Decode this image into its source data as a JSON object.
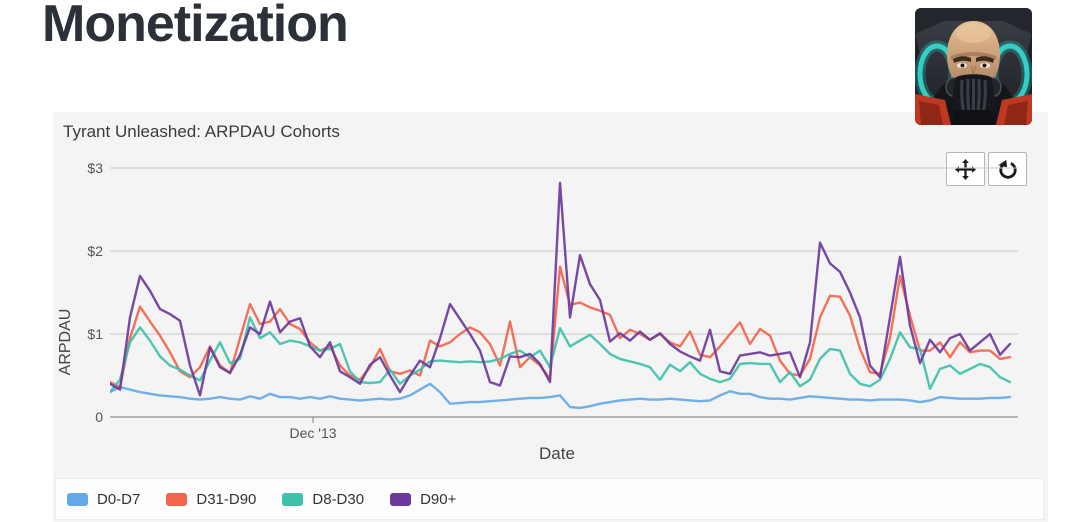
{
  "header": {
    "title": "Monetization"
  },
  "app_icon": {
    "name": "tyrant-unleashed-app-icon"
  },
  "chart": {
    "title": "Tyrant Unleashed: ARPDAU Cohorts",
    "xlabel": "Date",
    "ylabel": "ARPDAU",
    "y_ticks": [
      "$3",
      "$2",
      "$1",
      "0"
    ],
    "x_ticks": [
      {
        "label": "Dec '13",
        "fraction": 0.2256
      }
    ],
    "toolbar": [
      {
        "name": "Pan"
      },
      {
        "name": "Reset"
      }
    ]
  },
  "chart_data": {
    "type": "line",
    "title": "Tyrant Unleashed: ARPDAU Cohorts",
    "xlabel": "Date",
    "ylabel": "ARPDAU",
    "ylim": [
      0,
      3
    ],
    "y_tick_labels": [
      "$3",
      "$2",
      "$1",
      "0"
    ],
    "x_tick_labels": [
      {
        "label": "Dec '13",
        "position_fraction": 0.2256
      }
    ],
    "n_points": 91,
    "grid": true,
    "legend_position": "bottom",
    "series": [
      {
        "name": "D0-D7",
        "color": "#63a9e8",
        "values": [
          0.3,
          0.36,
          0.33,
          0.3,
          0.28,
          0.26,
          0.25,
          0.24,
          0.22,
          0.21,
          0.22,
          0.24,
          0.22,
          0.21,
          0.25,
          0.22,
          0.28,
          0.24,
          0.24,
          0.22,
          0.24,
          0.22,
          0.25,
          0.22,
          0.21,
          0.2,
          0.21,
          0.22,
          0.21,
          0.22,
          0.26,
          0.33,
          0.4,
          0.3,
          0.16,
          0.17,
          0.18,
          0.18,
          0.19,
          0.2,
          0.21,
          0.22,
          0.23,
          0.23,
          0.24,
          0.26,
          0.12,
          0.11,
          0.13,
          0.16,
          0.18,
          0.2,
          0.21,
          0.22,
          0.21,
          0.21,
          0.22,
          0.21,
          0.2,
          0.19,
          0.2,
          0.26,
          0.31,
          0.28,
          0.28,
          0.24,
          0.22,
          0.22,
          0.21,
          0.23,
          0.25,
          0.24,
          0.23,
          0.22,
          0.21,
          0.21,
          0.2,
          0.21,
          0.21,
          0.21,
          0.2,
          0.18,
          0.2,
          0.24,
          0.23,
          0.22,
          0.22,
          0.22,
          0.23,
          0.23,
          0.24
        ]
      },
      {
        "name": "D31-D90",
        "color": "#f2654a",
        "values": [
          0.42,
          0.36,
          0.95,
          1.33,
          1.15,
          0.98,
          0.78,
          0.55,
          0.48,
          0.6,
          0.85,
          0.62,
          0.53,
          0.95,
          1.36,
          1.12,
          1.15,
          1.3,
          1.12,
          1.06,
          0.9,
          0.8,
          0.85,
          0.62,
          0.5,
          0.45,
          0.6,
          0.82,
          0.55,
          0.52,
          0.56,
          0.5,
          0.92,
          0.85,
          0.9,
          1.0,
          1.08,
          1.02,
          0.88,
          0.62,
          1.15,
          0.6,
          0.72,
          0.62,
          0.46,
          1.81,
          1.35,
          1.38,
          1.32,
          1.28,
          1.23,
          0.95,
          1.05,
          1.0,
          0.93,
          1.0,
          0.9,
          0.85,
          1.03,
          0.75,
          0.72,
          0.85,
          1.0,
          1.14,
          0.88,
          1.06,
          0.98,
          0.68,
          0.52,
          0.5,
          0.7,
          1.2,
          1.46,
          1.45,
          1.22,
          0.82,
          0.54,
          0.52,
          0.95,
          1.7,
          1.22,
          0.8,
          0.8,
          0.9,
          0.72,
          0.9,
          0.78,
          0.8,
          0.8,
          0.7,
          0.72
        ]
      },
      {
        "name": "D8-D30",
        "color": "#3ec0aa",
        "values": [
          0.3,
          0.45,
          0.9,
          1.08,
          0.92,
          0.73,
          0.62,
          0.57,
          0.5,
          0.44,
          0.68,
          0.9,
          0.65,
          0.7,
          1.2,
          0.95,
          1.02,
          0.88,
          0.92,
          0.9,
          0.85,
          0.8,
          0.82,
          0.88,
          0.55,
          0.42,
          0.41,
          0.42,
          0.57,
          0.4,
          0.5,
          0.57,
          0.67,
          0.68,
          0.67,
          0.66,
          0.67,
          0.66,
          0.67,
          0.7,
          0.76,
          0.8,
          0.72,
          0.8,
          0.6,
          1.07,
          0.85,
          0.92,
          0.99,
          0.88,
          0.76,
          0.7,
          0.67,
          0.64,
          0.6,
          0.45,
          0.63,
          0.55,
          0.66,
          0.52,
          0.46,
          0.42,
          0.46,
          0.64,
          0.65,
          0.64,
          0.64,
          0.42,
          0.54,
          0.37,
          0.45,
          0.7,
          0.82,
          0.8,
          0.52,
          0.4,
          0.37,
          0.45,
          0.7,
          1.02,
          0.84,
          0.82,
          0.34,
          0.58,
          0.62,
          0.52,
          0.58,
          0.64,
          0.6,
          0.48,
          0.42
        ]
      },
      {
        "name": "D90+",
        "color": "#6b3a9c",
        "values": [
          0.4,
          0.33,
          1.2,
          1.7,
          1.52,
          1.3,
          1.24,
          1.16,
          0.62,
          0.26,
          0.84,
          0.6,
          0.53,
          0.75,
          1.08,
          1.0,
          1.39,
          1.02,
          1.15,
          1.19,
          0.85,
          0.72,
          0.9,
          0.55,
          0.48,
          0.4,
          0.63,
          0.72,
          0.5,
          0.3,
          0.5,
          0.68,
          0.6,
          0.95,
          1.36,
          1.18,
          1.0,
          0.8,
          0.42,
          0.38,
          0.73,
          0.72,
          0.76,
          0.64,
          0.42,
          2.82,
          1.2,
          1.95,
          1.6,
          1.41,
          0.91,
          1.01,
          0.92,
          1.03,
          0.93,
          1.01,
          0.88,
          0.79,
          0.73,
          0.68,
          1.05,
          0.55,
          0.52,
          0.74,
          0.76,
          0.78,
          0.74,
          0.76,
          0.78,
          0.48,
          0.9,
          2.1,
          1.85,
          1.75,
          1.5,
          1.2,
          0.62,
          0.48,
          1.2,
          1.93,
          1.1,
          0.65,
          0.93,
          0.78,
          0.95,
          1.0,
          0.8,
          0.9,
          1.0,
          0.75,
          0.88
        ]
      }
    ]
  }
}
